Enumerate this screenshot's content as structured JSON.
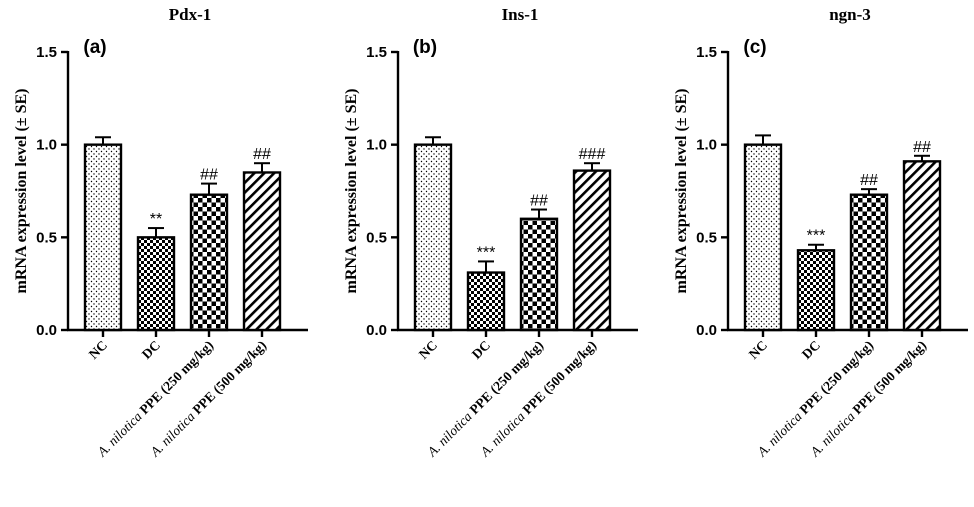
{
  "chart_data": [
    {
      "type": "bar",
      "panel_label": "(a)",
      "title": "Pdx-1",
      "ylabel": "mRNA expression level (± SE)",
      "ylim": [
        0,
        1.5
      ],
      "yticks": [
        "0.0",
        "0.5",
        "1.0",
        "1.5"
      ],
      "categories": [
        {
          "pre": "",
          "italic": "",
          "bold": "NC"
        },
        {
          "pre": "",
          "italic": "",
          "bold": "DC"
        },
        {
          "pre": "",
          "italic": "A. nilotica",
          "bold": " PPE (250 mg/kg)"
        },
        {
          "pre": "",
          "italic": "A. nilotica",
          "bold": " PPE (500 mg/kg)"
        }
      ],
      "values": [
        1.0,
        0.5,
        0.73,
        0.85
      ],
      "errors": [
        0.04,
        0.05,
        0.06,
        0.05
      ],
      "significance": [
        "",
        "**",
        "##",
        "##"
      ],
      "patterns": [
        "dots",
        "checker",
        "checker-large",
        "diagonal"
      ]
    },
    {
      "type": "bar",
      "panel_label": "(b)",
      "title": "Ins-1",
      "ylabel": "mRNA expression level (± SE)",
      "ylim": [
        0,
        1.5
      ],
      "yticks": [
        "0.0",
        "0.5",
        "1.0",
        "1.5"
      ],
      "categories": [
        {
          "pre": "",
          "italic": "",
          "bold": "NC"
        },
        {
          "pre": "",
          "italic": "",
          "bold": "DC"
        },
        {
          "pre": "",
          "italic": "A. nilotica",
          "bold": " PPE (250 mg/kg)"
        },
        {
          "pre": "",
          "italic": "A. nilotica",
          "bold": " PPE (500 mg/kg)"
        }
      ],
      "values": [
        1.0,
        0.31,
        0.6,
        0.86
      ],
      "errors": [
        0.04,
        0.06,
        0.05,
        0.04
      ],
      "significance": [
        "",
        "***",
        "##",
        "###"
      ],
      "patterns": [
        "dots",
        "checker",
        "checker-large",
        "diagonal"
      ]
    },
    {
      "type": "bar",
      "panel_label": "(c)",
      "title": "ngn-3",
      "ylabel": "mRNA expression level (± SE)",
      "ylim": [
        0,
        1.5
      ],
      "yticks": [
        "0.0",
        "0.5",
        "1.0",
        "1.5"
      ],
      "categories": [
        {
          "pre": "",
          "italic": "",
          "bold": "NC"
        },
        {
          "pre": "",
          "italic": "",
          "bold": "DC"
        },
        {
          "pre": "",
          "italic": "A. nilotica",
          "bold": " PPE (250 mg/kg)"
        },
        {
          "pre": "",
          "italic": "A. nilotica",
          "bold": " PPE (500 mg/kg)"
        }
      ],
      "values": [
        1.0,
        0.43,
        0.73,
        0.91
      ],
      "errors": [
        0.05,
        0.03,
        0.03,
        0.03
      ],
      "significance": [
        "",
        "***",
        "##",
        "##"
      ],
      "patterns": [
        "dots",
        "checker",
        "checker-large",
        "diagonal"
      ]
    }
  ]
}
